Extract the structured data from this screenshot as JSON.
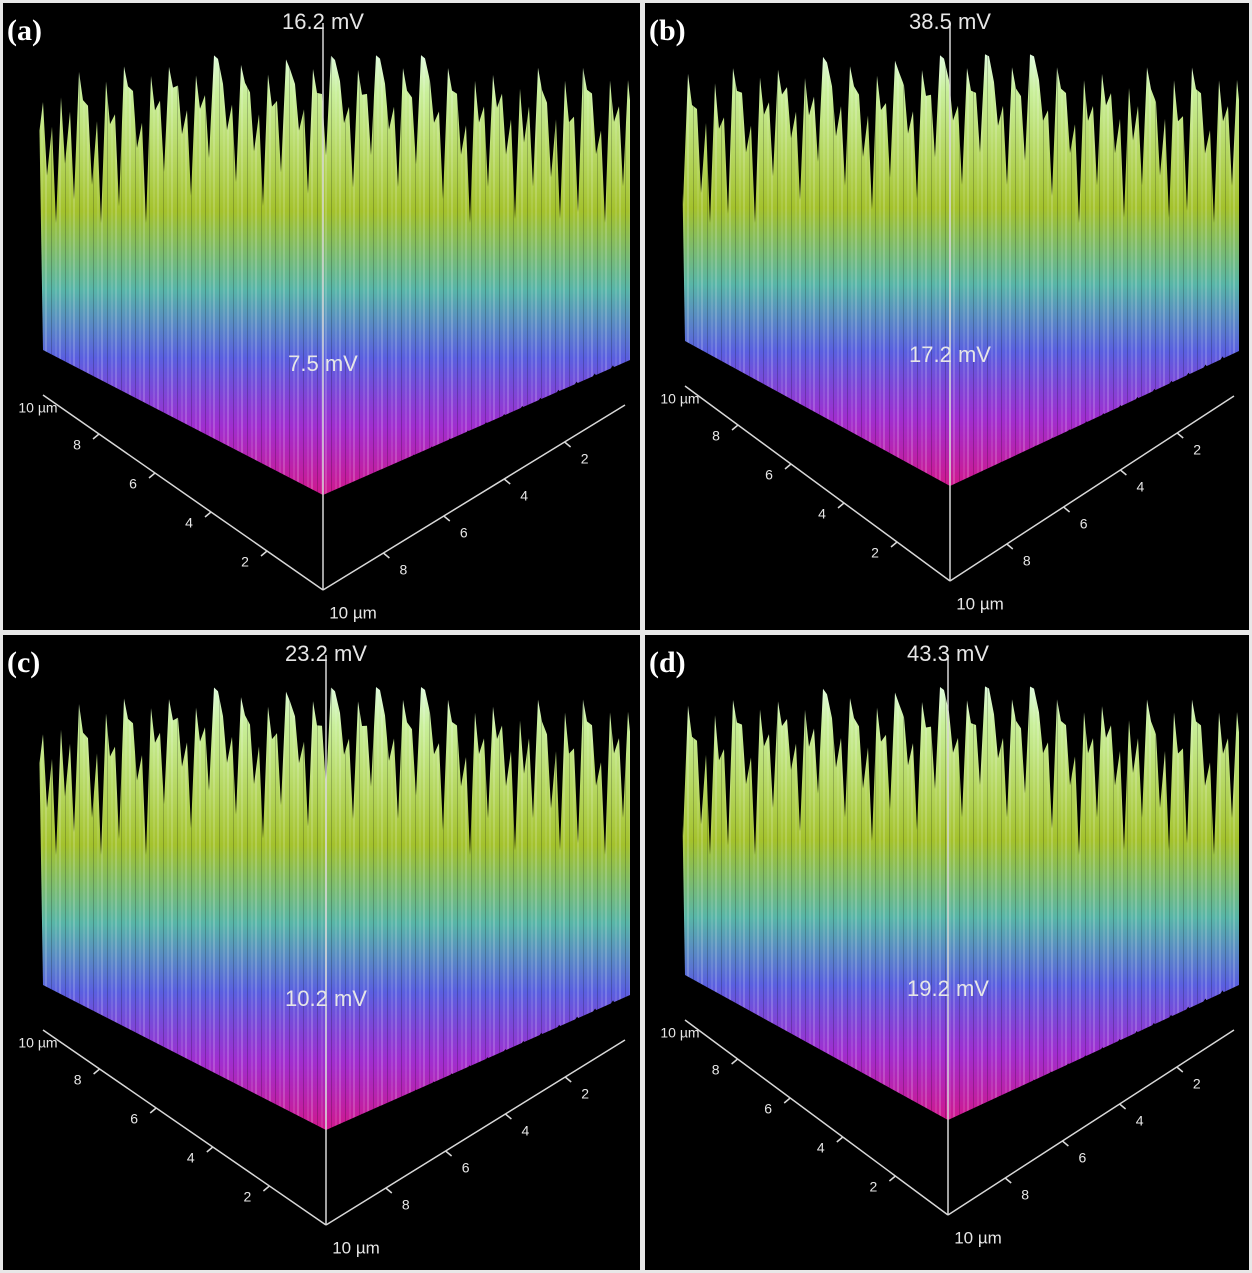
{
  "panels": [
    {
      "label": "(a)",
      "max": "16.2 mV",
      "min": "7.5 mV",
      "corner_label": "10 µm",
      "left_end_label": "10 µm",
      "left_ticks": [
        "2",
        "4",
        "6",
        "8"
      ],
      "right_ticks": [
        "2",
        "4",
        "6",
        "8"
      ]
    },
    {
      "label": "(b)",
      "max": "38.5 mV",
      "min": "17.2 mV",
      "corner_label": "10 µm",
      "left_end_label": "10 µm",
      "left_ticks": [
        "2",
        "4",
        "6",
        "8"
      ],
      "right_ticks": [
        "2",
        "4",
        "6",
        "8"
      ]
    },
    {
      "label": "(c)",
      "max": "23.2 mV",
      "min": "10.2 mV",
      "corner_label": "10 µm",
      "left_end_label": "10 µm",
      "left_ticks": [
        "2",
        "4",
        "6",
        "8"
      ],
      "right_ticks": [
        "2",
        "4",
        "6",
        "8"
      ]
    },
    {
      "label": "(d)",
      "max": "43.3 mV",
      "min": "19.2 mV",
      "corner_label": "10 µm",
      "left_end_label": "10 µm",
      "left_ticks": [
        "2",
        "4",
        "6",
        "8"
      ],
      "right_ticks": [
        "2",
        "4",
        "6",
        "8"
      ]
    }
  ]
}
